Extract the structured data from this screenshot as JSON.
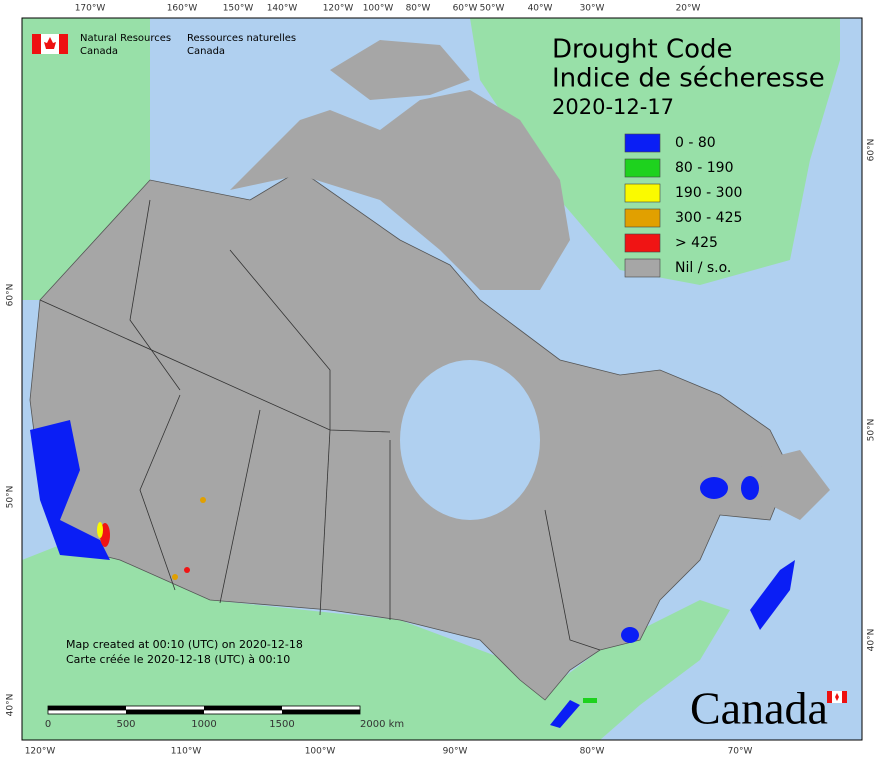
{
  "agency_en": [
    "Natural Resources",
    "Canada"
  ],
  "agency_fr": [
    "Ressources naturelles",
    "Canada"
  ],
  "title": [
    "Drought Code",
    "Indice de sécheresse"
  ],
  "date": "2020-12-17",
  "legend": [
    {
      "label": "0 - 80",
      "color": "#0a1ef5"
    },
    {
      "label": "80 - 190",
      "color": "#1ed21e"
    },
    {
      "label": "190 - 300",
      "color": "#fafa00"
    },
    {
      "label": "300 - 425",
      "color": "#e1a000"
    },
    {
      "label": "> 425",
      "color": "#f01414"
    },
    {
      "label": "Nil / s.o.",
      "color": "#a6a6a6"
    }
  ],
  "top_longitudes": [
    "170°W",
    "160°W",
    "150°W",
    "140°W",
    "120°W",
    "100°W",
    "80°W",
    "60°W",
    "50°W",
    "40°W",
    "30°W",
    "20°W"
  ],
  "bottom_longitudes": [
    "120°W",
    "110°W",
    "100°W",
    "90°W",
    "80°W",
    "70°W"
  ],
  "left_latitudes": [
    "60°N",
    "50°N",
    "40°N"
  ],
  "right_latitudes": [
    "60°N",
    "50°N",
    "40°N"
  ],
  "created_en": "Map created at 00:10 (UTC) on 2020-12-18",
  "created_fr": "Carte créée le 2020-12-18 (UTC) à 00:10",
  "scale_labels": [
    "0",
    "500",
    "1000",
    "1500",
    "2000  km"
  ],
  "wordmark": "Canada"
}
